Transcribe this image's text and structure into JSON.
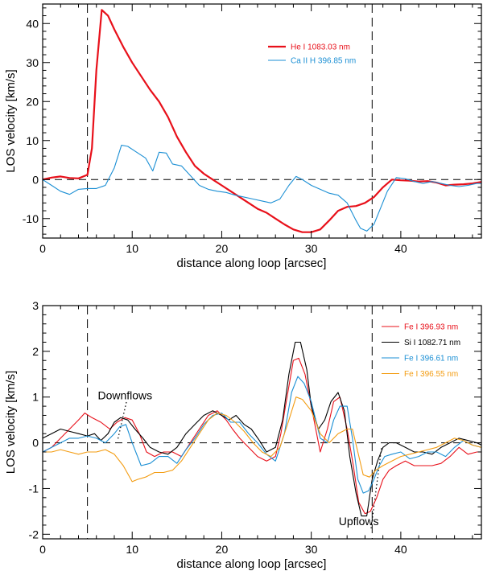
{
  "chart_data": [
    {
      "type": "line",
      "panel": "top",
      "xlabel": "distance along loop [arcsec]",
      "ylabel": "LOS velocity [km/s]",
      "xlim": [
        0,
        49
      ],
      "ylim": [
        -15,
        45
      ],
      "xticks": [
        0,
        10,
        20,
        30,
        40
      ],
      "yticks": [
        -10,
        0,
        10,
        20,
        30,
        40
      ],
      "xtick_labels": [
        "0",
        "10",
        "20",
        "30",
        "40"
      ],
      "ytick_labels": [
        "-10",
        "0",
        "10",
        "20",
        "30",
        "40"
      ],
      "vlines": [
        5,
        36.8
      ],
      "hline": 0,
      "legend_position": "top-right",
      "series": [
        {
          "name": "He I 1083.03 nm",
          "color": "#e8101a",
          "width": 2.2,
          "x": [
            0,
            1,
            2,
            3,
            4,
            5,
            5.5,
            6,
            6.6,
            7.3,
            8,
            9,
            10,
            11,
            12,
            13,
            14,
            15,
            16,
            17,
            18,
            19,
            20,
            21,
            22,
            23,
            24,
            25,
            26,
            27,
            28,
            29,
            30,
            31,
            32,
            33,
            34,
            35,
            36,
            37,
            38,
            39,
            40,
            41,
            42,
            43,
            44,
            45,
            46,
            47,
            48,
            49
          ],
          "values": [
            0,
            0.5,
            0.8,
            0.4,
            0.3,
            1.2,
            8,
            28,
            43.5,
            42,
            38.5,
            34,
            30,
            26.5,
            23,
            20,
            16,
            11,
            7,
            3.5,
            1.5,
            0,
            -1.5,
            -3,
            -4.5,
            -6,
            -7.5,
            -8.5,
            -10,
            -11.5,
            -12.8,
            -13.5,
            -13.5,
            -12.8,
            -10.5,
            -8,
            -7,
            -6.8,
            -6,
            -4.5,
            -2,
            0,
            -0.2,
            -0.3,
            -0.5,
            -0.4,
            -0.8,
            -1.5,
            -1.3,
            -1.2,
            -1,
            -0.6
          ]
        },
        {
          "name": "Ca II H 396.85 nm",
          "color": "#1b8fd4",
          "width": 1.1,
          "x": [
            0,
            1,
            2,
            3,
            4,
            5,
            6,
            7,
            8,
            8.8,
            9.5,
            10.5,
            11.5,
            12.3,
            13,
            13.8,
            14.5,
            15.5,
            16.5,
            17.5,
            18.5,
            19.5,
            20.5,
            21.5,
            22.5,
            23.5,
            24.5,
            25.5,
            26.5,
            27.5,
            28.3,
            29,
            30,
            31,
            32,
            33,
            34,
            35,
            35.5,
            36.2,
            37,
            37.8,
            38.5,
            39.5,
            40.5,
            41.5,
            42.5,
            43.5,
            44.5,
            45.5,
            46.5,
            47.5,
            48.5,
            49
          ],
          "values": [
            0,
            -1.5,
            -3,
            -3.8,
            -2.5,
            -2.3,
            -2.3,
            -1.5,
            3,
            8.8,
            8.5,
            7,
            5.5,
            2.2,
            7,
            6.8,
            4,
            3.5,
            1,
            -1.5,
            -2.5,
            -3,
            -3.3,
            -4,
            -4.5,
            -5,
            -5.5,
            -6,
            -5,
            -1.5,
            0.8,
            0,
            -1.5,
            -2.5,
            -3.5,
            -4,
            -6,
            -10.5,
            -12.5,
            -13.2,
            -11.5,
            -7,
            -3,
            0.5,
            0.2,
            -0.5,
            -1,
            -0.5,
            -1,
            -1.5,
            -1.8,
            -1.5,
            -1,
            -1
          ]
        }
      ]
    },
    {
      "type": "line",
      "panel": "bottom",
      "xlabel": "distance along loop [arcsec]",
      "ylabel": "LOS velocity [km/s]",
      "xlim": [
        0,
        49
      ],
      "ylim": [
        -2.1,
        3
      ],
      "xticks": [
        0,
        10,
        20,
        30,
        40
      ],
      "yticks": [
        -2,
        -1,
        0,
        1,
        2,
        3
      ],
      "xtick_labels": [
        "0",
        "10",
        "20",
        "30",
        "40"
      ],
      "ytick_labels": [
        "-2",
        "-1",
        "0",
        "1",
        "2",
        "3"
      ],
      "vlines": [
        5,
        36.8
      ],
      "hline": 0,
      "legend_position": "top-right",
      "annotations": [
        {
          "text": "Downflows",
          "x": 9.2,
          "y": 0.95
        },
        {
          "text": "Upflows",
          "x": 35.3,
          "y": -1.8
        }
      ],
      "series": [
        {
          "name": "Fe I 396.93 nm",
          "color": "#e8101a",
          "width": 1.1,
          "x": [
            0,
            1,
            2,
            3,
            4,
            4.7,
            5.5,
            6.5,
            7.5,
            8.3,
            9.2,
            10,
            10.8,
            11.6,
            12.5,
            13.5,
            14.5,
            15.5,
            16.5,
            17.5,
            18.5,
            19.5,
            20.5,
            21.2,
            22,
            23,
            24,
            25,
            26,
            26.6,
            27.3,
            28,
            28.6,
            29.3,
            30,
            31,
            31.8,
            32.5,
            33.2,
            34,
            34.7,
            35.3,
            36,
            36.6,
            37.3,
            38,
            38.7,
            39.5,
            40.5,
            41.5,
            42.5,
            43.5,
            44.5,
            45.5,
            46.5,
            47.5,
            48.5,
            49
          ],
          "values": [
            -0.2,
            -0.1,
            0.1,
            0.3,
            0.5,
            0.65,
            0.55,
            0.45,
            0.3,
            0.45,
            0.55,
            0.5,
            0.2,
            -0.2,
            -0.3,
            -0.2,
            -0.2,
            -0.3,
            0,
            0.3,
            0.6,
            0.7,
            0.5,
            0.3,
            0.1,
            -0.1,
            -0.3,
            -0.4,
            -0.3,
            0.2,
            1,
            1.8,
            1.85,
            1.5,
            0.8,
            -0.2,
            0.3,
            0.9,
            1,
            0.3,
            -0.5,
            -1.3,
            -1.55,
            -1.5,
            -1.2,
            -0.8,
            -0.6,
            -0.5,
            -0.4,
            -0.5,
            -0.5,
            -0.5,
            -0.45,
            -0.3,
            -0.1,
            -0.25,
            -0.2,
            -0.2
          ]
        },
        {
          "name": "Si I 1082.71 nm",
          "color": "#000000",
          "width": 1.1,
          "x": [
            0,
            1,
            2,
            3,
            4,
            5,
            5.8,
            6.5,
            7.3,
            8,
            8.7,
            9.5,
            10.3,
            11.2,
            12,
            13,
            14,
            15,
            16,
            17,
            18,
            19,
            20,
            20.8,
            21.6,
            22.5,
            23.3,
            24.2,
            25,
            26,
            26.8,
            27.5,
            28.2,
            28.8,
            29.5,
            30,
            30.8,
            31.5,
            32.2,
            33,
            33.7,
            34.3,
            35,
            35.6,
            36.2,
            36.8,
            37.4,
            38,
            38.7,
            39.5,
            40.5,
            41.5,
            42.5,
            43.5,
            44.5,
            45.5,
            46.5,
            47.5,
            48.5,
            49
          ],
          "values": [
            0.1,
            0.2,
            0.3,
            0.25,
            0.2,
            0.15,
            0.2,
            0.05,
            0.2,
            0.45,
            0.55,
            0.5,
            0.3,
            0.1,
            -0.1,
            -0.2,
            -0.25,
            -0.1,
            0.2,
            0.4,
            0.6,
            0.7,
            0.6,
            0.5,
            0.6,
            0.4,
            0.3,
            0.05,
            -0.2,
            -0.1,
            0.5,
            1.5,
            2.2,
            2.2,
            1.6,
            0.8,
            0.3,
            0.5,
            0.9,
            1.1,
            0.7,
            -0.3,
            -1.1,
            -1.6,
            -1.6,
            -0.8,
            -0.4,
            -0.1,
            0,
            0,
            -0.1,
            -0.2,
            -0.2,
            -0.25,
            -0.1,
            0,
            0.1,
            0.05,
            0,
            -0.05
          ]
        },
        {
          "name": "Fe I 396.61 nm",
          "color": "#1b8fd4",
          "width": 1.1,
          "x": [
            0,
            1,
            2,
            3,
            4,
            5,
            6,
            7,
            8,
            8.6,
            9.3,
            10,
            11,
            12,
            13,
            14,
            15,
            16,
            17,
            18,
            19,
            20,
            21,
            22,
            23,
            24,
            25,
            26,
            27,
            27.8,
            28.5,
            29.2,
            30,
            31,
            31.8,
            32.5,
            33.2,
            34,
            34.6,
            35.2,
            35.8,
            36.4,
            37,
            37.6,
            38.2,
            39,
            40,
            41,
            42,
            43,
            44,
            45,
            46,
            47,
            48,
            49
          ],
          "values": [
            -0.2,
            -0.1,
            0,
            0.1,
            0.1,
            0.15,
            0.1,
            0,
            0.2,
            0.35,
            0.4,
            0,
            -0.5,
            -0.45,
            -0.3,
            -0.3,
            -0.45,
            -0.15,
            0.1,
            0.4,
            0.6,
            0.65,
            0.45,
            0.45,
            0.2,
            0,
            -0.25,
            -0.4,
            0.2,
            1.1,
            1.45,
            1.3,
            0.9,
            0.1,
            0,
            0.5,
            0.8,
            0.8,
            0.1,
            -0.8,
            -1.1,
            -1.05,
            -0.8,
            -0.5,
            -0.3,
            -0.25,
            -0.2,
            -0.35,
            -0.3,
            -0.2,
            -0.2,
            -0.3,
            -0.1,
            0.05,
            -0.05,
            -0.1
          ]
        },
        {
          "name": "Fe I 396.55 nm",
          "color": "#f39c12",
          "width": 1.1,
          "x": [
            0,
            1,
            2,
            3,
            4,
            5,
            6,
            7,
            8,
            9,
            10,
            10.6,
            11.5,
            12.5,
            13.5,
            14.5,
            15.5,
            16.5,
            17.5,
            18.5,
            19.5,
            20.5,
            21.5,
            22.5,
            23.5,
            24.5,
            25.5,
            26.5,
            27.5,
            28.3,
            29,
            30,
            31,
            32,
            33,
            34,
            34.6,
            35.2,
            35.8,
            36.5,
            37.2,
            38,
            39,
            40,
            41,
            42,
            43,
            44,
            45,
            46,
            47,
            48,
            49
          ],
          "values": [
            -0.2,
            -0.2,
            -0.15,
            -0.2,
            -0.25,
            -0.2,
            -0.2,
            -0.15,
            -0.25,
            -0.5,
            -0.85,
            -0.8,
            -0.75,
            -0.65,
            -0.65,
            -0.6,
            -0.4,
            -0.1,
            0.2,
            0.5,
            0.65,
            0.6,
            0.45,
            0.25,
            0,
            -0.2,
            -0.3,
            -0.1,
            0.5,
            1,
            0.95,
            0.7,
            0.2,
            0,
            0.2,
            0.3,
            0.3,
            -0.2,
            -0.7,
            -0.75,
            -0.6,
            -0.5,
            -0.4,
            -0.3,
            -0.25,
            -0.2,
            -0.15,
            -0.1,
            0,
            0.1,
            0.05,
            -0.05,
            -0.1
          ]
        }
      ]
    }
  ]
}
